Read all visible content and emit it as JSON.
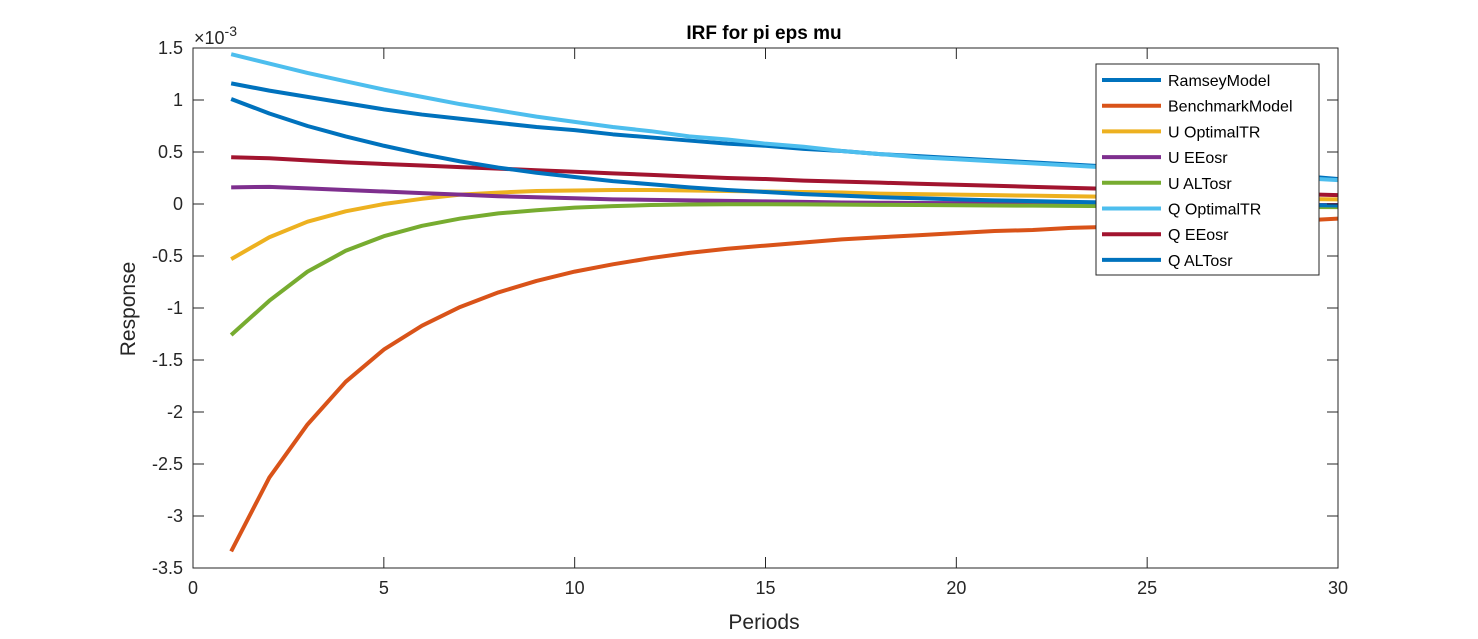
{
  "chart_data": {
    "type": "line",
    "title": "IRF for pi eps mu",
    "xlabel": "Periods",
    "ylabel": "Response",
    "y_exponent_label": "×10",
    "y_exponent_power": "-3",
    "y_scale": 0.001,
    "xlim": [
      0,
      30
    ],
    "ylim": [
      -3.5,
      1.5
    ],
    "xticks": [
      0,
      5,
      10,
      15,
      20,
      25,
      30
    ],
    "yticks": [
      -3.5,
      -3,
      -2.5,
      -2,
      -1.5,
      -1,
      -0.5,
      0,
      0.5,
      1,
      1.5
    ],
    "ytick_labels": [
      "-3.5",
      "-3",
      "-2.5",
      "-2",
      "-1.5",
      "-1",
      "-0.5",
      "0",
      "0.5",
      "1",
      "1.5"
    ],
    "xtick_labels": [
      "0",
      "5",
      "10",
      "15",
      "20",
      "25",
      "30"
    ],
    "legend_position": "top-right",
    "grid": false,
    "x": [
      1,
      2,
      3,
      4,
      5,
      6,
      7,
      8,
      9,
      10,
      11,
      12,
      13,
      14,
      15,
      16,
      17,
      18,
      19,
      20,
      21,
      22,
      23,
      24,
      25,
      26,
      27,
      28,
      29,
      30
    ],
    "series": [
      {
        "name": "RamseyModel",
        "color": "#0072BD",
        "values": [
          1.16,
          1.09,
          1.03,
          0.97,
          0.91,
          0.86,
          0.82,
          0.78,
          0.74,
          0.71,
          0.67,
          0.64,
          0.61,
          0.58,
          0.56,
          0.53,
          0.51,
          0.48,
          0.46,
          0.44,
          0.42,
          0.4,
          0.38,
          0.36,
          0.34,
          0.32,
          0.3,
          0.29,
          0.27,
          0.24
        ]
      },
      {
        "name": "BenchmarkModel",
        "color": "#D95319",
        "values": [
          -3.34,
          -2.63,
          -2.12,
          -1.71,
          -1.4,
          -1.17,
          -0.99,
          -0.85,
          -0.74,
          -0.65,
          -0.58,
          -0.52,
          -0.47,
          -0.43,
          -0.4,
          -0.37,
          -0.34,
          -0.32,
          -0.3,
          -0.28,
          -0.26,
          -0.25,
          -0.23,
          -0.22,
          -0.21,
          -0.2,
          -0.18,
          -0.17,
          -0.16,
          -0.14
        ]
      },
      {
        "name": "U OptimalTR",
        "color": "#EDB120",
        "values": [
          -0.53,
          -0.32,
          -0.17,
          -0.07,
          0.0,
          0.05,
          0.09,
          0.11,
          0.125,
          0.13,
          0.135,
          0.135,
          0.13,
          0.125,
          0.12,
          0.115,
          0.11,
          0.1,
          0.095,
          0.09,
          0.085,
          0.08,
          0.075,
          0.07,
          0.065,
          0.06,
          0.055,
          0.05,
          0.048,
          0.045
        ]
      },
      {
        "name": "U EEosr",
        "color": "#7E2F8E",
        "values": [
          0.16,
          0.165,
          0.15,
          0.135,
          0.12,
          0.105,
          0.09,
          0.075,
          0.065,
          0.055,
          0.045,
          0.04,
          0.035,
          0.03,
          0.025,
          0.02,
          0.015,
          0.012,
          0.01,
          0.008,
          0.005,
          0.003,
          0.001,
          0.0,
          -0.002,
          -0.004,
          -0.006,
          -0.008,
          -0.009,
          -0.01
        ]
      },
      {
        "name": "U ALTosr",
        "color": "#77AC30",
        "values": [
          -1.26,
          -0.93,
          -0.65,
          -0.45,
          -0.31,
          -0.21,
          -0.14,
          -0.09,
          -0.06,
          -0.035,
          -0.02,
          -0.01,
          -0.005,
          -0.003,
          -0.003,
          -0.004,
          -0.006,
          -0.008,
          -0.01,
          -0.012,
          -0.014,
          -0.016,
          -0.018,
          -0.02,
          -0.022,
          -0.024,
          -0.026,
          -0.028,
          -0.029,
          -0.03
        ]
      },
      {
        "name": "Q OptimalTR",
        "color": "#4DBEEE",
        "values": [
          1.44,
          1.35,
          1.26,
          1.18,
          1.1,
          1.03,
          0.96,
          0.9,
          0.84,
          0.79,
          0.74,
          0.7,
          0.65,
          0.62,
          0.58,
          0.55,
          0.51,
          0.48,
          0.45,
          0.43,
          0.41,
          0.39,
          0.37,
          0.35,
          0.33,
          0.31,
          0.29,
          0.27,
          0.25,
          0.23
        ]
      },
      {
        "name": "Q EEosr",
        "color": "#A2142F",
        "values": [
          0.45,
          0.44,
          0.42,
          0.4,
          0.385,
          0.37,
          0.355,
          0.34,
          0.325,
          0.31,
          0.295,
          0.28,
          0.265,
          0.25,
          0.24,
          0.225,
          0.215,
          0.205,
          0.195,
          0.185,
          0.175,
          0.165,
          0.155,
          0.145,
          0.135,
          0.125,
          0.115,
          0.105,
          0.095,
          0.085
        ]
      },
      {
        "name": "Q ALTosr",
        "color": "#0072BD",
        "values": [
          1.01,
          0.87,
          0.75,
          0.65,
          0.56,
          0.48,
          0.41,
          0.35,
          0.3,
          0.26,
          0.22,
          0.19,
          0.16,
          0.135,
          0.115,
          0.095,
          0.08,
          0.065,
          0.055,
          0.045,
          0.035,
          0.028,
          0.02,
          0.015,
          0.01,
          0.005,
          0.0,
          -0.005,
          -0.01,
          -0.015
        ]
      }
    ]
  }
}
